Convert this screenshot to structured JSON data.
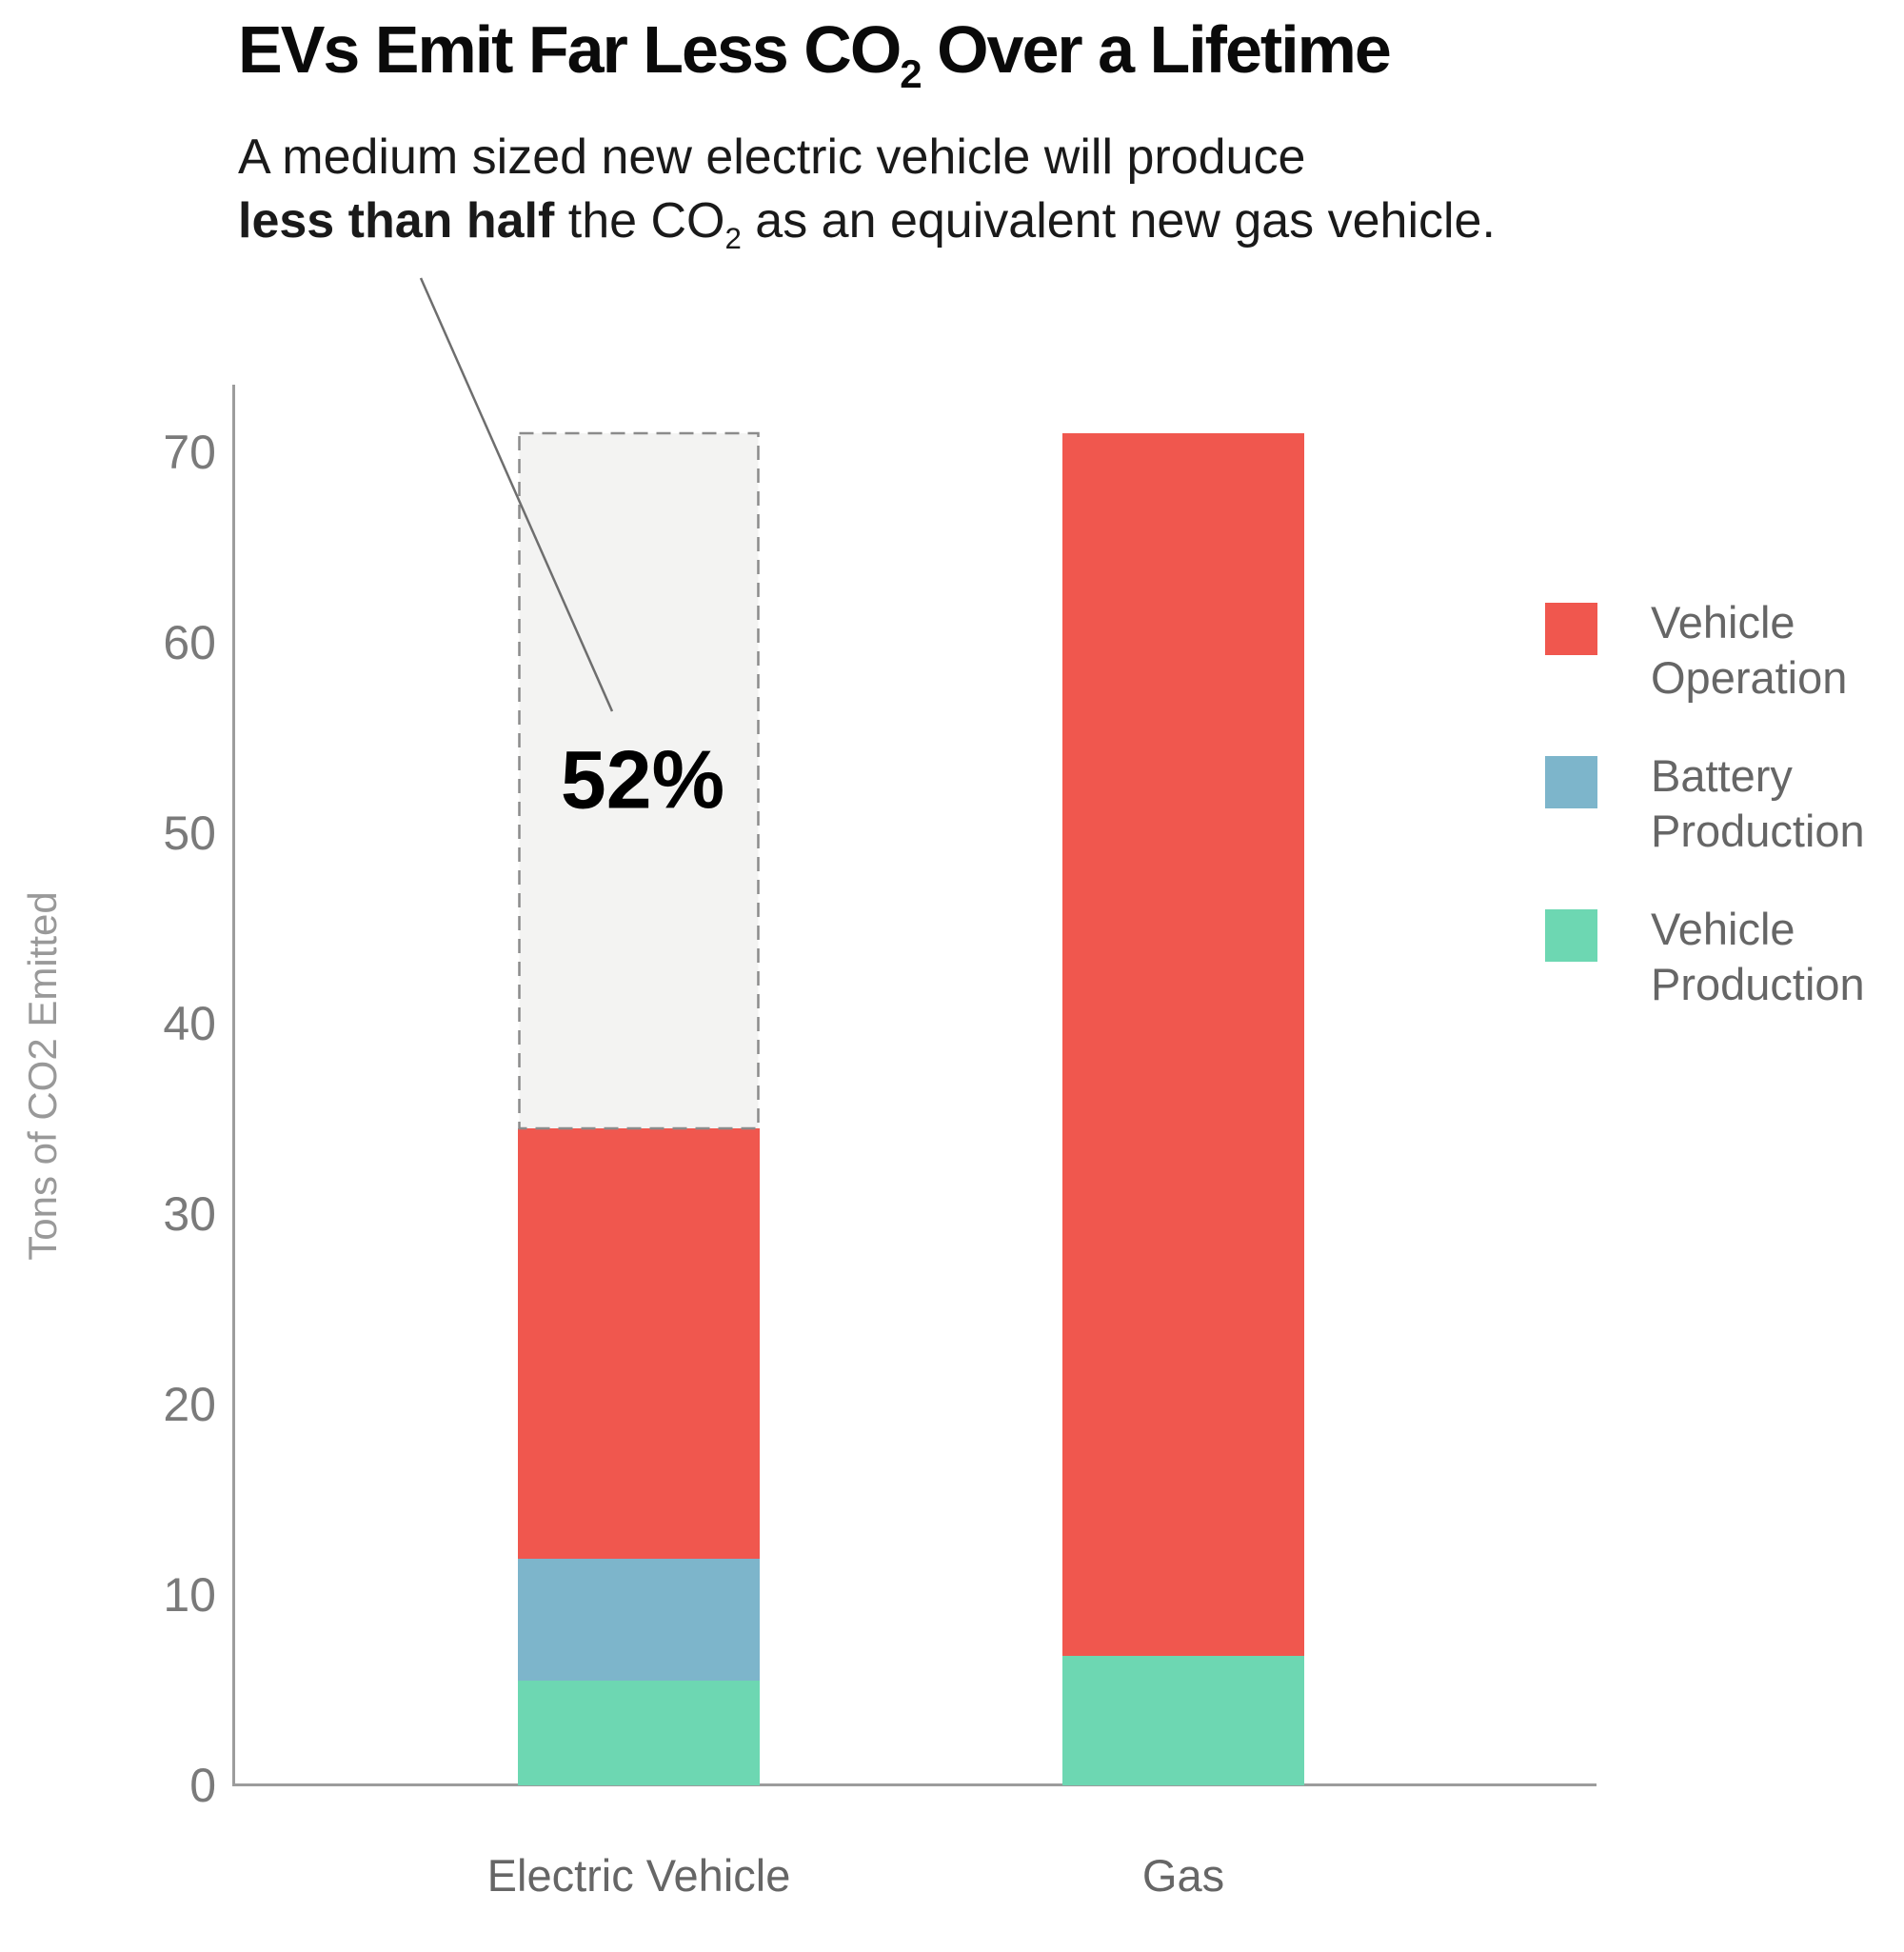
{
  "header": {
    "title": {
      "pre": "EVs Emit Far Less CO",
      "sub": "2",
      "post": " Over a Lifetime"
    },
    "subtitle": {
      "line1": "A medium sized new electric vehicle will produce",
      "line2_bold": "less than half",
      "line2_mid": " the CO",
      "line2_sub": "2",
      "line2_post": " as an equivalent new gas vehicle."
    }
  },
  "chart_data": {
    "type": "bar",
    "stacked": true,
    "categories": [
      "Electric Vehicle",
      "Gas"
    ],
    "series": [
      {
        "name": "Vehicle Production",
        "color": "#6dd7b2",
        "values": [
          5.5,
          6.8
        ]
      },
      {
        "name": "Battery Production",
        "color": "#7db5cb",
        "values": [
          6.4,
          0
        ]
      },
      {
        "name": "Vehicle Operation",
        "color": "#f0574e",
        "values": [
          22.6,
          64.2
        ]
      }
    ],
    "totals": [
      34.5,
      71
    ],
    "ylabel": "Tons of CO2 Emitted",
    "yticks": [
      0,
      10,
      20,
      30,
      40,
      50,
      60,
      70
    ],
    "ylim": [
      0,
      73.5
    ],
    "grid": false,
    "legend_position": "right",
    "annotation": {
      "label": "52%",
      "category": "Electric Vehicle",
      "from": 34.5,
      "to": 71,
      "fill": "#f3f3f2",
      "border": "#8b8b8b"
    }
  },
  "legend": {
    "items": [
      {
        "label": "Vehicle Operation",
        "color": "#f0574e"
      },
      {
        "label": "Battery Production",
        "color": "#7db5cb"
      },
      {
        "label": "Vehicle Production",
        "color": "#6dd7b2"
      }
    ]
  },
  "colors": {
    "axis": "#9c9c9c",
    "tick_text": "#7a7a7a",
    "legend_text": "#666666",
    "leader_line": "#6e6e6e",
    "title_text": "#0a0a0a"
  }
}
